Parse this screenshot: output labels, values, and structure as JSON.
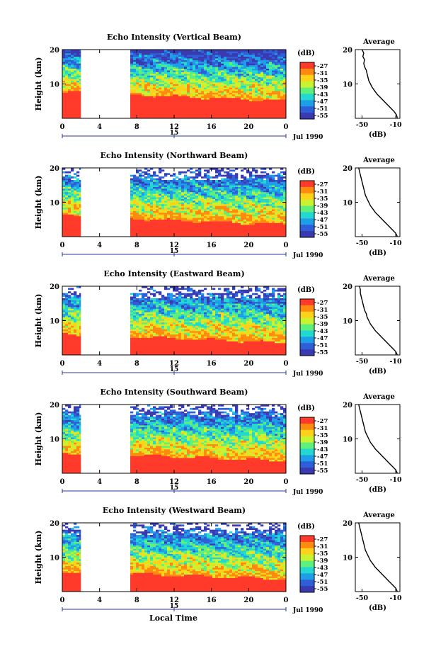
{
  "figure": {
    "xlabel": "Local Time",
    "date_label": "Jul 1990",
    "date_tick": "15",
    "ylabel": "Height (km)",
    "avg_title": "Average",
    "avg_xlabel": "(dB)",
    "colorbar_unit": "(dB)",
    "colorbar_ticks": [
      "-27",
      "-31",
      "-35",
      "-39",
      "-43",
      "-47",
      "-51",
      "-55"
    ],
    "colormap": [
      "#ff3a2a",
      "#ff8a10",
      "#ffd21a",
      "#c9f230",
      "#5ef07a",
      "#23d8d0",
      "#1f9ee8",
      "#2f5fd8",
      "#3a3ab0"
    ]
  },
  "chart_data": [
    {
      "type": "heatmap",
      "title": "Echo Intensity (Vertical Beam)",
      "xlim": [
        0,
        24
      ],
      "ylim": [
        0,
        20
      ],
      "x_ticks": [
        "0",
        "4",
        "8",
        "12",
        "16",
        "20",
        "0"
      ],
      "y_ticks": [
        "10",
        "20"
      ],
      "data_gap_hours": [
        2,
        7.2
      ],
      "avg_title": "Average",
      "avg_x_ticks": [
        "-50",
        "-10"
      ],
      "avg_y_ticks": [
        "10",
        "20"
      ],
      "avg_profile": {
        "x_db": [
          -8,
          -9,
          -12,
          -16,
          -20,
          -24,
          -28,
          -32,
          -35,
          -38,
          -40,
          -42,
          -43,
          -44,
          -45,
          -47,
          -48,
          -47,
          -49,
          -48,
          -50
        ],
        "y_km": [
          0,
          1,
          2,
          3,
          4,
          5,
          6,
          7,
          8,
          9,
          10,
          11,
          12,
          13,
          14,
          15,
          16,
          17,
          18,
          19,
          20
        ]
      }
    },
    {
      "type": "heatmap",
      "title": "Echo Intensity (Northward Beam)",
      "xlim": [
        0,
        24
      ],
      "ylim": [
        0,
        20
      ],
      "x_ticks": [
        "0",
        "4",
        "8",
        "12",
        "16",
        "20",
        "0"
      ],
      "y_ticks": [
        "10",
        "20"
      ],
      "data_gap_hours": [
        2,
        7.2
      ],
      "avg_title": "Average",
      "avg_x_ticks": [
        "-50",
        "-10"
      ],
      "avg_y_ticks": [
        "10",
        "20"
      ],
      "avg_profile": {
        "x_db": [
          -8,
          -10,
          -14,
          -18,
          -22,
          -26,
          -30,
          -34,
          -37,
          -40,
          -42,
          -44,
          -46,
          -47,
          -48,
          -49,
          -50,
          -51,
          -52,
          -53,
          -54
        ],
        "y_km": [
          0,
          1,
          2,
          3,
          4,
          5,
          6,
          7,
          8,
          9,
          10,
          11,
          12,
          13,
          14,
          15,
          16,
          17,
          18,
          19,
          20
        ]
      }
    },
    {
      "type": "heatmap",
      "title": "Echo Intensity (Eastward Beam)",
      "xlim": [
        0,
        24
      ],
      "ylim": [
        0,
        20
      ],
      "x_ticks": [
        "0",
        "4",
        "8",
        "12",
        "16",
        "20",
        "0"
      ],
      "y_ticks": [
        "10",
        "20"
      ],
      "data_gap_hours": [
        2,
        7.2
      ],
      "avg_title": "Average",
      "avg_x_ticks": [
        "-50",
        "-10"
      ],
      "avg_y_ticks": [
        "10",
        "20"
      ],
      "avg_profile": {
        "x_db": [
          -8,
          -10,
          -14,
          -18,
          -22,
          -26,
          -30,
          -34,
          -37,
          -40,
          -42,
          -44,
          -45,
          -47,
          -48,
          -49,
          -50,
          -51,
          -52,
          -52,
          -53
        ],
        "y_km": [
          0,
          1,
          2,
          3,
          4,
          5,
          6,
          7,
          8,
          9,
          10,
          11,
          12,
          13,
          14,
          15,
          16,
          17,
          18,
          19,
          20
        ]
      }
    },
    {
      "type": "heatmap",
      "title": "Echo Intensity (Southward Beam)",
      "xlim": [
        0,
        24
      ],
      "ylim": [
        0,
        20
      ],
      "x_ticks": [
        "0",
        "4",
        "8",
        "12",
        "16",
        "20",
        "0"
      ],
      "y_ticks": [
        "10",
        "20"
      ],
      "data_gap_hours": [
        2,
        7.2
      ],
      "avg_title": "Average",
      "avg_x_ticks": [
        "-50",
        "-10"
      ],
      "avg_y_ticks": [
        "10",
        "20"
      ],
      "avg_profile": {
        "x_db": [
          -8,
          -10,
          -14,
          -18,
          -22,
          -26,
          -30,
          -34,
          -37,
          -40,
          -42,
          -44,
          -46,
          -47,
          -48,
          -49,
          -50,
          -51,
          -52,
          -53,
          -54
        ],
        "y_km": [
          0,
          1,
          2,
          3,
          4,
          5,
          6,
          7,
          8,
          9,
          10,
          11,
          12,
          13,
          14,
          15,
          16,
          17,
          18,
          19,
          20
        ]
      }
    },
    {
      "type": "heatmap",
      "title": "Echo Intensity (Westward Beam)",
      "xlim": [
        0,
        24
      ],
      "ylim": [
        0,
        20
      ],
      "x_ticks": [
        "0",
        "4",
        "8",
        "12",
        "16",
        "20",
        "0"
      ],
      "y_ticks": [
        "10",
        "20"
      ],
      "data_gap_hours": [
        2,
        7.2
      ],
      "avg_title": "Average",
      "avg_x_ticks": [
        "-50",
        "-10"
      ],
      "avg_y_ticks": [
        "10",
        "20"
      ],
      "avg_profile": {
        "x_db": [
          -8,
          -10,
          -14,
          -18,
          -22,
          -26,
          -30,
          -34,
          -37,
          -40,
          -42,
          -44,
          -46,
          -47,
          -48,
          -49,
          -50,
          -51,
          -52,
          -53,
          -54
        ],
        "y_km": [
          0,
          1,
          2,
          3,
          4,
          5,
          6,
          7,
          8,
          9,
          10,
          11,
          12,
          13,
          14,
          15,
          16,
          17,
          18,
          19,
          20
        ]
      }
    }
  ]
}
